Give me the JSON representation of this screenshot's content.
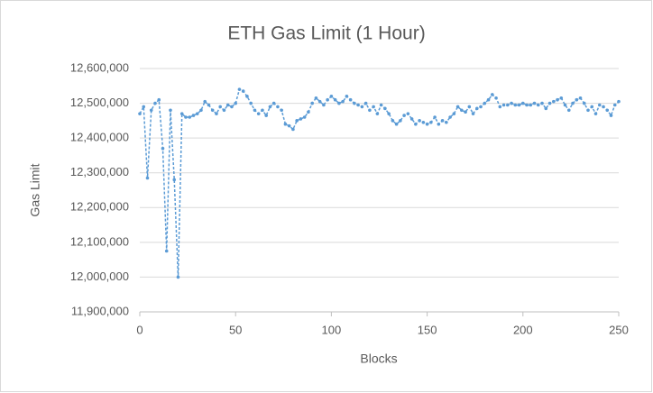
{
  "chart_data": {
    "type": "line",
    "title": "ETH Gas Limit (1 Hour)",
    "x_label": "Blocks",
    "y_label": "Gas Limit",
    "color": "#5b9bd5",
    "grid": true,
    "x": [
      0,
      2,
      4,
      6,
      8,
      10,
      12,
      14,
      16,
      18,
      20,
      22,
      24,
      26,
      28,
      30,
      32,
      34,
      36,
      38,
      40,
      42,
      44,
      46,
      48,
      50,
      52,
      54,
      56,
      58,
      60,
      62,
      64,
      66,
      68,
      70,
      72,
      74,
      76,
      78,
      80,
      82,
      84,
      86,
      88,
      90,
      92,
      94,
      96,
      98,
      100,
      102,
      104,
      106,
      108,
      110,
      112,
      114,
      116,
      118,
      120,
      122,
      124,
      126,
      128,
      130,
      132,
      134,
      136,
      138,
      140,
      142,
      144,
      146,
      148,
      150,
      152,
      154,
      156,
      158,
      160,
      162,
      164,
      166,
      168,
      170,
      172,
      174,
      176,
      178,
      180,
      182,
      184,
      186,
      188,
      190,
      192,
      194,
      196,
      198,
      200,
      202,
      204,
      206,
      208,
      210,
      212,
      214,
      216,
      218,
      220,
      222,
      224,
      226,
      228,
      230,
      232,
      234,
      236,
      238,
      240,
      242,
      244,
      246,
      248,
      250
    ],
    "values": [
      12470000,
      12490000,
      12285000,
      12480000,
      12500000,
      12510000,
      12370000,
      12075000,
      12480000,
      12280000,
      12000000,
      12470000,
      12460000,
      12460000,
      12465000,
      12470000,
      12480000,
      12505000,
      12495000,
      12480000,
      12470000,
      12490000,
      12480000,
      12495000,
      12490000,
      12500000,
      12540000,
      12535000,
      12520000,
      12500000,
      12480000,
      12470000,
      12480000,
      12465000,
      12490000,
      12500000,
      12490000,
      12480000,
      12440000,
      12435000,
      12425000,
      12450000,
      12455000,
      12460000,
      12475000,
      12500000,
      12515000,
      12505000,
      12495000,
      12510000,
      12520000,
      12510000,
      12500000,
      12505000,
      12520000,
      12510000,
      12500000,
      12495000,
      12490000,
      12500000,
      12480000,
      12490000,
      12470000,
      12495000,
      12485000,
      12470000,
      12450000,
      12440000,
      12450000,
      12465000,
      12470000,
      12455000,
      12440000,
      12450000,
      12445000,
      12440000,
      12445000,
      12460000,
      12440000,
      12450000,
      12445000,
      12460000,
      12470000,
      12490000,
      12480000,
      12475000,
      12490000,
      12470000,
      12485000,
      12490000,
      12500000,
      12510000,
      12525000,
      12515000,
      12490000,
      12495000,
      12495000,
      12500000,
      12495000,
      12495000,
      12500000,
      12495000,
      12495000,
      12500000,
      12495000,
      12500000,
      12485000,
      12500000,
      12505000,
      12510000,
      12515000,
      12495000,
      12480000,
      12500000,
      12510000,
      12515000,
      12500000,
      12480000,
      12490000,
      12470000,
      12495000,
      12490000,
      12480000,
      12465000,
      12495000,
      12505000
    ],
    "xlim": [
      0,
      250
    ],
    "xticks": [
      0,
      50,
      100,
      150,
      200,
      250
    ],
    "ylim": [
      11900000,
      12600000
    ],
    "yticks": [
      {
        "value": 11900000,
        "label": "11,900,000"
      },
      {
        "value": 12000000,
        "label": "12,000,000"
      },
      {
        "value": 12100000,
        "label": "12,100,000"
      },
      {
        "value": 12200000,
        "label": "12,200,000"
      },
      {
        "value": 12300000,
        "label": "12,300,000"
      },
      {
        "value": 12400000,
        "label": "12,400,000"
      },
      {
        "value": 12500000,
        "label": "12,500,000"
      },
      {
        "value": 12600000,
        "label": "12,600,000"
      }
    ]
  }
}
